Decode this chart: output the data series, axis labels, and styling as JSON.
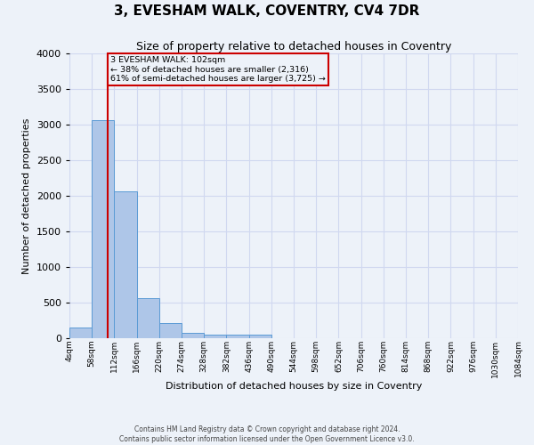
{
  "title": "3, EVESHAM WALK, COVENTRY, CV4 7DR",
  "subtitle": "Size of property relative to detached houses in Coventry",
  "xlabel": "Distribution of detached houses by size in Coventry",
  "ylabel": "Number of detached properties",
  "footnote1": "Contains HM Land Registry data © Crown copyright and database right 2024.",
  "footnote2": "Contains public sector information licensed under the Open Government Licence v3.0.",
  "bin_labels": [
    "4sqm",
    "58sqm",
    "112sqm",
    "166sqm",
    "220sqm",
    "274sqm",
    "328sqm",
    "382sqm",
    "436sqm",
    "490sqm",
    "544sqm",
    "598sqm",
    "652sqm",
    "706sqm",
    "760sqm",
    "814sqm",
    "868sqm",
    "922sqm",
    "976sqm",
    "1030sqm",
    "1084sqm"
  ],
  "bar_values": [
    150,
    3060,
    2060,
    560,
    215,
    75,
    55,
    50,
    50,
    0,
    0,
    0,
    0,
    0,
    0,
    0,
    0,
    0,
    0,
    0
  ],
  "bar_color": "#aec6e8",
  "bar_edge_color": "#5b9bd5",
  "grid_color": "#d0d8f0",
  "background_color": "#edf2f9",
  "annotation_box_text": "3 EVESHAM WALK: 102sqm\n← 38% of detached houses are smaller (2,316)\n61% of semi-detached houses are larger (3,725) →",
  "annotation_box_color": "#cc0000",
  "red_line_x": 1.72,
  "ylim": [
    0,
    4000
  ],
  "yticks": [
    0,
    500,
    1000,
    1500,
    2000,
    2500,
    3000,
    3500,
    4000
  ]
}
